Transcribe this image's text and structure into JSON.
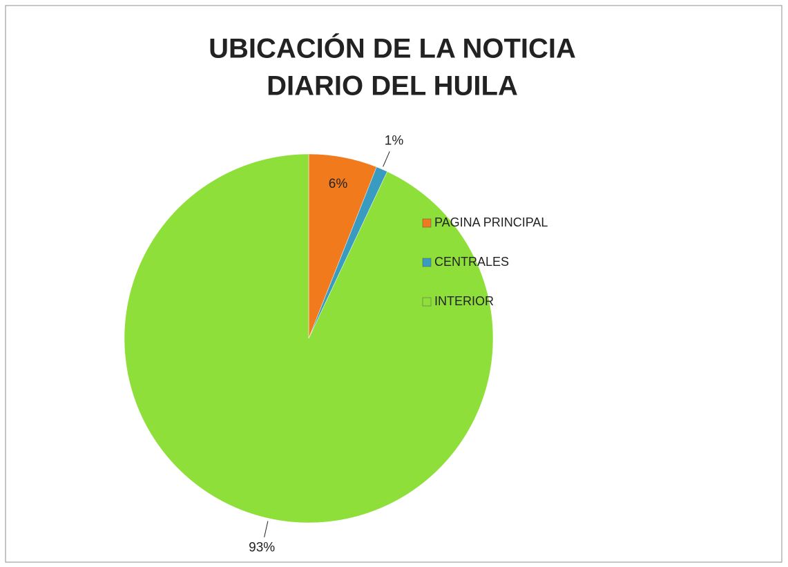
{
  "chart_data": {
    "type": "pie",
    "title": [
      "UBICACIÓN DE LA NOTICIA",
      "DIARIO DEL HUILA"
    ],
    "categories": [
      "PAGINA PRINCIPAL",
      "CENTRALES",
      "INTERIOR"
    ],
    "values": [
      6,
      1,
      93
    ],
    "value_labels": [
      "6%",
      "1%",
      "93%"
    ],
    "colors": [
      "#f07a1c",
      "#3a9bc1",
      "#8fdf3a"
    ],
    "legend": "right"
  }
}
